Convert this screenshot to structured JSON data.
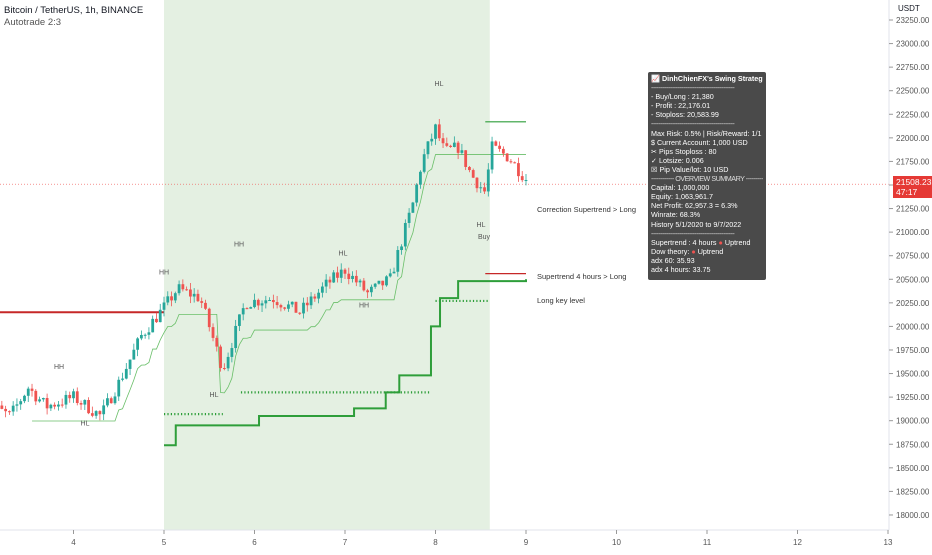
{
  "header": {
    "symbol_line": "Bitcoin / TetherUS, 1h, BINANCE",
    "strategy_line": "Autotrade 2:3"
  },
  "axis": {
    "currency": "USDT",
    "price_ticks": [
      "23250.00",
      "23000.00",
      "22750.00",
      "22500.00",
      "22250.00",
      "22000.00",
      "21750.00",
      "21500.00",
      "21250.00",
      "21000.00",
      "20750.00",
      "20500.00",
      "20250.00",
      "20000.00",
      "19750.00",
      "19500.00",
      "19250.00",
      "19000.00",
      "18750.00",
      "18500.00",
      "18250.00",
      "18000.00"
    ],
    "date_ticks": [
      "4",
      "5",
      "6",
      "7",
      "8",
      "9",
      "10",
      "11",
      "12",
      "13"
    ]
  },
  "price_tag": {
    "price": "21508.23",
    "countdown": "47:17"
  },
  "colors": {
    "bull": "#26a69a",
    "bear": "#ef5350",
    "supertrend_up": "#2e9e3a",
    "supertrend_down": "#c62828",
    "green_zone": "#d7ead5",
    "red_zone": "#f8d7d7",
    "panel_bg": "#4a4a4a",
    "price_tag_bg": "#e53935"
  },
  "annotations": {
    "swing_labels": [
      "HH",
      "HL",
      "HH",
      "HL",
      "HH",
      "HL",
      "HH",
      "HL"
    ],
    "buy_label": "Buy",
    "lines": [
      {
        "label": "Correction Supertrend  > Long"
      },
      {
        "label": "Supertrend 4 hours > Long"
      },
      {
        "label": "Long key level"
      }
    ]
  },
  "panel": {
    "title": "📈 DinhChienFX's Swing Strategy",
    "separator": "--------------------------------------------",
    "trade": [
      "- Buy/Long   : 21,380",
      "- Profit   : 22,176.01",
      "- Stoploss: 20,583.99"
    ],
    "risk": [
      "Max Risk: 0.5% | Risk/Reward: 1/1",
      "$ Current Account: 1,000 USD",
      "✂ Pips Stoploss : 80",
      "✓ Lotsize: 0.006",
      "☒ Pip Value/lot: 10 USD"
    ],
    "overview_title": "------------ OVERVIEW SUMMARY ------------",
    "overview": [
      "Capital: 1,000,000",
      "Equity: 1,063,961.7",
      "Net Profit: 62,957.3 = 6.3%",
      "Winrate: 68.3%",
      "History 5/1/2020 to 9/7/2022"
    ],
    "trend": [
      {
        "label": "Supertrend : 4 hours",
        "state": "Uptrend"
      },
      {
        "label": "Dow theory:",
        "state": "Uptrend"
      },
      {
        "label": "adx 60: 35.93",
        "state": ""
      },
      {
        "label": "adx 4 hours: 33.75",
        "state": ""
      }
    ]
  },
  "chart_data": {
    "type": "candlestick",
    "title": "Bitcoin / TetherUS, 1h, BINANCE",
    "x_axis": "day of month",
    "y_axis": "USDT",
    "ylim": [
      17900,
      23400
    ],
    "last_price": 21508.23,
    "anchor_prices": [
      {
        "day": 3.0,
        "price": 19200
      },
      {
        "day": 3.3,
        "price": 19050
      },
      {
        "day": 3.5,
        "price": 19350
      },
      {
        "day": 3.7,
        "price": 19150
      },
      {
        "day": 4.0,
        "price": 19250
      },
      {
        "day": 4.3,
        "price": 19050
      },
      {
        "day": 4.5,
        "price": 19400
      },
      {
        "day": 4.75,
        "price": 19900
      },
      {
        "day": 5.0,
        "price": 20200
      },
      {
        "day": 5.15,
        "price": 20400
      },
      {
        "day": 5.4,
        "price": 20300
      },
      {
        "day": 5.6,
        "price": 19700
      },
      {
        "day": 5.65,
        "price": 19550
      },
      {
        "day": 5.9,
        "price": 20250
      },
      {
        "day": 6.2,
        "price": 20300
      },
      {
        "day": 6.5,
        "price": 20150
      },
      {
        "day": 6.8,
        "price": 20450
      },
      {
        "day": 7.0,
        "price": 20600
      },
      {
        "day": 7.25,
        "price": 20350
      },
      {
        "day": 7.5,
        "price": 20500
      },
      {
        "day": 7.75,
        "price": 21300
      },
      {
        "day": 7.85,
        "price": 21750
      },
      {
        "day": 8.0,
        "price": 22100
      },
      {
        "day": 8.1,
        "price": 21850
      },
      {
        "day": 8.25,
        "price": 21900
      },
      {
        "day": 8.4,
        "price": 21600
      },
      {
        "day": 8.55,
        "price": 21420
      },
      {
        "day": 8.62,
        "price": 21900
      },
      {
        "day": 8.8,
        "price": 21800
      },
      {
        "day": 9.05,
        "price": 21508
      }
    ],
    "supertrend_4h": [
      {
        "day": 5.0,
        "price": 18740
      },
      {
        "day": 5.13,
        "price": 18950
      },
      {
        "day": 6.05,
        "price": 19050
      },
      {
        "day": 7.1,
        "price": 19130
      },
      {
        "day": 7.45,
        "price": 19300
      },
      {
        "day": 7.6,
        "price": 19480
      },
      {
        "day": 7.95,
        "price": 20000
      },
      {
        "day": 8.05,
        "price": 20300
      },
      {
        "day": 8.25,
        "price": 20480
      },
      {
        "day": 9.0,
        "price": 20500
      }
    ],
    "supertrend_down_left": [
      {
        "day": 2.6,
        "price": 20340
      },
      {
        "day": 2.9,
        "price": 20250
      },
      {
        "day": 3.1,
        "price": 20150
      },
      {
        "day": 5.0,
        "price": 20150
      }
    ],
    "long_key_levels": [
      {
        "from": 2.6,
        "to": 2.75,
        "price": 19480
      },
      {
        "from": 5.0,
        "to": 5.65,
        "price": 19070
      },
      {
        "from": 5.85,
        "to": 7.95,
        "price": 19300
      },
      {
        "from": 8.0,
        "to": 8.6,
        "price": 20270
      }
    ],
    "target_line": {
      "from": 8.55,
      "to": 9.0,
      "price": 22170
    },
    "stop_line": {
      "from": 8.55,
      "to": 9.0,
      "price": 20560
    },
    "long_zone": {
      "from": 5.0,
      "to": 8.6
    },
    "short_zone": {
      "from": 2.6,
      "to": 2.75
    }
  }
}
